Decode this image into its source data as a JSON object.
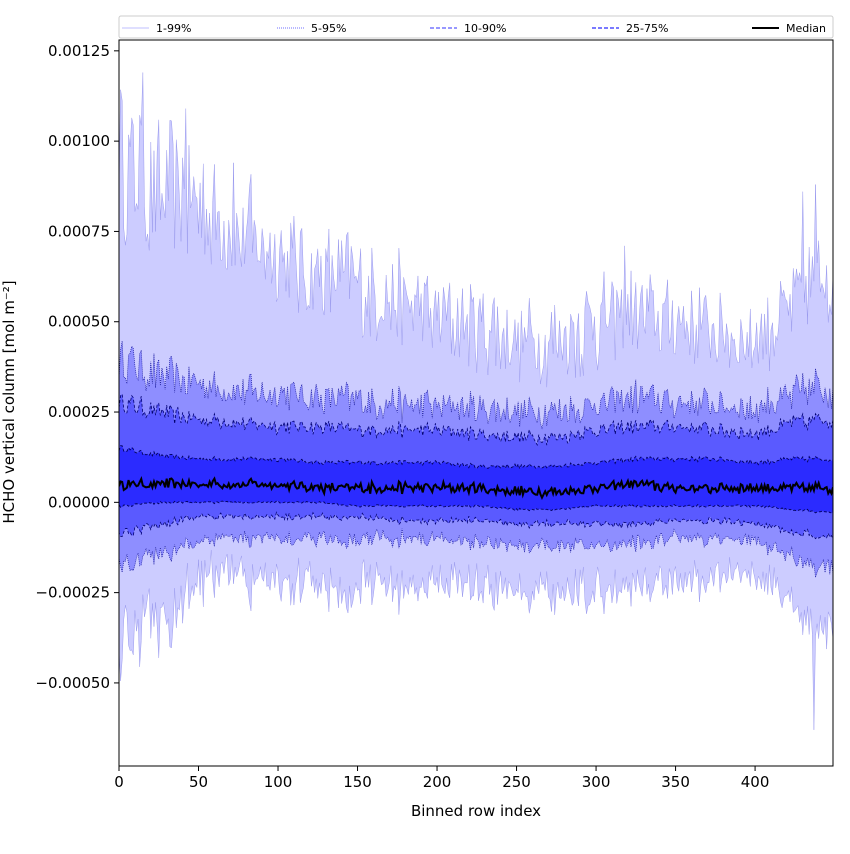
{
  "chart_data": {
    "type": "area",
    "xlabel": "Binned row index",
    "ylabel": "HCHO vertical column [mol m⁻²]",
    "xlim": [
      0,
      449
    ],
    "ylim": [
      -0.00073,
      0.00128
    ],
    "xticks": [
      0,
      50,
      100,
      150,
      200,
      250,
      300,
      350,
      400
    ],
    "xtick_labels": [
      "0",
      "50",
      "100",
      "150",
      "200",
      "250",
      "300",
      "350",
      "400"
    ],
    "yticks": [
      -0.0005,
      -0.00025,
      0,
      0.00025,
      0.0005,
      0.00075,
      0.001,
      0.00125
    ],
    "ytick_labels": [
      "−0.00050",
      "−0.00025",
      "0.00000",
      "0.00025",
      "0.00050",
      "0.00075",
      "0.00100",
      "0.00125"
    ],
    "grid": false,
    "legend_position": "top",
    "legend": [
      {
        "label": "1-99%",
        "color": "#ccccff",
        "dash": "solid"
      },
      {
        "label": "5-95%",
        "color": "#8e8eff",
        "dash": "dotted"
      },
      {
        "label": "10-90%",
        "color": "#5a5aff",
        "dash": "dashed"
      },
      {
        "label": "25-75%",
        "color": "#2b2bff",
        "dash": "dashed"
      },
      {
        "label": "Median",
        "color": "#000000",
        "dash": "solid"
      }
    ],
    "x": [
      0,
      25,
      50,
      75,
      100,
      125,
      150,
      175,
      200,
      225,
      250,
      275,
      300,
      325,
      350,
      375,
      400,
      425,
      449
    ],
    "bands": [
      {
        "name": "1-99%",
        "color": "#ccccff",
        "lower": [
          -0.00042,
          -0.00032,
          -0.00022,
          -0.0002,
          -0.00022,
          -0.00022,
          -0.00023,
          -0.00023,
          -0.00022,
          -0.00024,
          -0.00025,
          -0.00026,
          -0.00025,
          -0.00022,
          -0.00022,
          -0.00021,
          -0.00021,
          -0.00027,
          -0.0004
        ],
        "upper": [
          0.00098,
          0.00085,
          0.00083,
          0.00075,
          0.00068,
          0.00062,
          0.0006,
          0.00055,
          0.00052,
          0.0005,
          0.00045,
          0.00045,
          0.0005,
          0.00052,
          0.0005,
          0.00048,
          0.00045,
          0.00055,
          0.00068
        ]
      },
      {
        "name": "5-95%",
        "color": "#8e8eff",
        "lower": [
          -0.00018,
          -0.00014,
          -0.00011,
          -0.0001,
          -0.0001,
          -0.0001,
          -0.0001,
          -0.0001,
          -0.0001,
          -0.00011,
          -0.00012,
          -0.00012,
          -0.00012,
          -0.00011,
          -0.0001,
          -0.0001,
          -0.00011,
          -0.00015,
          -0.0002
        ],
        "upper": [
          0.0004,
          0.00035,
          0.00033,
          0.00031,
          0.0003,
          0.00029,
          0.00028,
          0.00027,
          0.00027,
          0.00026,
          0.00025,
          0.00025,
          0.00027,
          0.00029,
          0.00028,
          0.00027,
          0.00026,
          0.0003,
          0.00033
        ]
      },
      {
        "name": "10-90%",
        "color": "#5a5aff",
        "lower": [
          -9e-05,
          -6e-05,
          -4e-05,
          -4e-05,
          -4e-05,
          -4e-05,
          -4e-05,
          -5e-05,
          -5e-05,
          -5e-05,
          -6e-05,
          -6e-05,
          -6e-05,
          -6e-05,
          -5e-05,
          -5e-05,
          -6e-05,
          -8e-05,
          -0.0001
        ],
        "upper": [
          0.00028,
          0.00025,
          0.00023,
          0.00022,
          0.00021,
          0.00021,
          0.0002,
          0.0002,
          0.0002,
          0.00019,
          0.00018,
          0.00018,
          0.0002,
          0.00021,
          0.00021,
          0.0002,
          0.00019,
          0.00022,
          0.00023
        ]
      },
      {
        "name": "25-75%",
        "color": "#2b2bff",
        "lower": [
          -1e-05,
          0.0,
          0.0,
          0.0,
          0.0,
          0.0,
          -1e-05,
          -1e-05,
          -1e-05,
          -1e-05,
          -2e-05,
          -2e-05,
          -1e-05,
          -1e-05,
          -1e-05,
          -1e-05,
          -1e-05,
          -2e-05,
          -3e-05
        ],
        "upper": [
          0.00015,
          0.00013,
          0.00012,
          0.00012,
          0.00012,
          0.00011,
          0.00011,
          0.00011,
          0.00011,
          0.0001,
          0.0001,
          0.0001,
          0.00011,
          0.00012,
          0.00012,
          0.00012,
          0.00011,
          0.00012,
          0.00012
        ]
      }
    ],
    "median": {
      "name": "Median",
      "color": "#000000",
      "values": [
        5e-05,
        5e-05,
        5e-05,
        5e-05,
        5e-05,
        4e-05,
        4e-05,
        4e-05,
        4e-05,
        4e-05,
        3e-05,
        3e-05,
        4e-05,
        5e-05,
        4e-05,
        4e-05,
        4e-05,
        4e-05,
        4e-05
      ]
    },
    "spikes": [
      {
        "x": 15,
        "value": 0.00119
      },
      {
        "x": 42,
        "value": 0.00109
      },
      {
        "x": 72,
        "value": 0.00094
      },
      {
        "x": 318,
        "value": 0.00071
      },
      {
        "x": 430,
        "value": 0.00086
      },
      {
        "x": 438,
        "value": 0.00088
      },
      {
        "x": 437,
        "value": -0.00063
      }
    ]
  }
}
